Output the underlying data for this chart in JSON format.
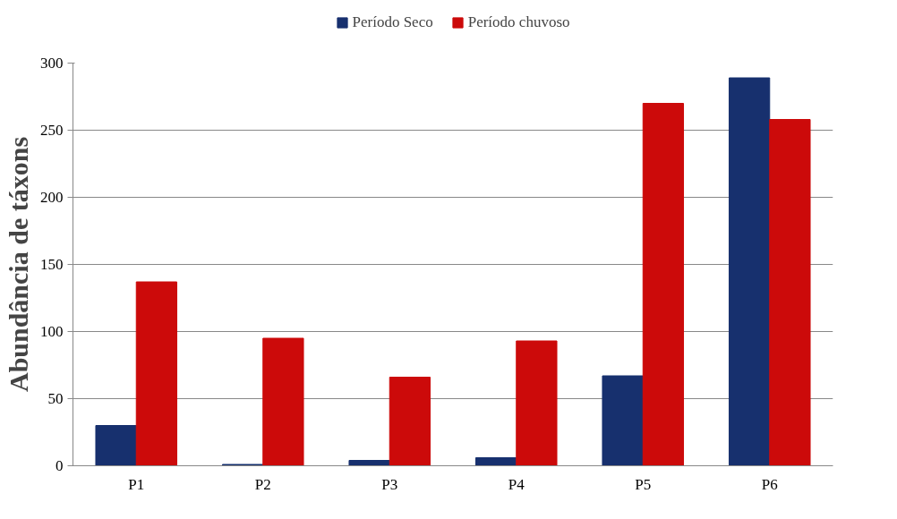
{
  "chart_data": {
    "type": "bar",
    "ylabel": "Abundância de táxons",
    "categories": [
      "P1",
      "P2",
      "P3",
      "P4",
      "P5",
      "P6"
    ],
    "series": [
      {
        "name": "Período Seco",
        "color": "#17306e",
        "values": [
          30,
          1,
          4,
          6,
          67,
          289
        ]
      },
      {
        "name": "Período chuvoso",
        "color": "#cc0a0a",
        "values": [
          137,
          95,
          66,
          93,
          270,
          258
        ]
      }
    ],
    "ylim": [
      0,
      300
    ],
    "yticks": [
      0,
      50,
      100,
      150,
      200,
      250,
      300
    ],
    "grid": "y",
    "legend": "top"
  }
}
